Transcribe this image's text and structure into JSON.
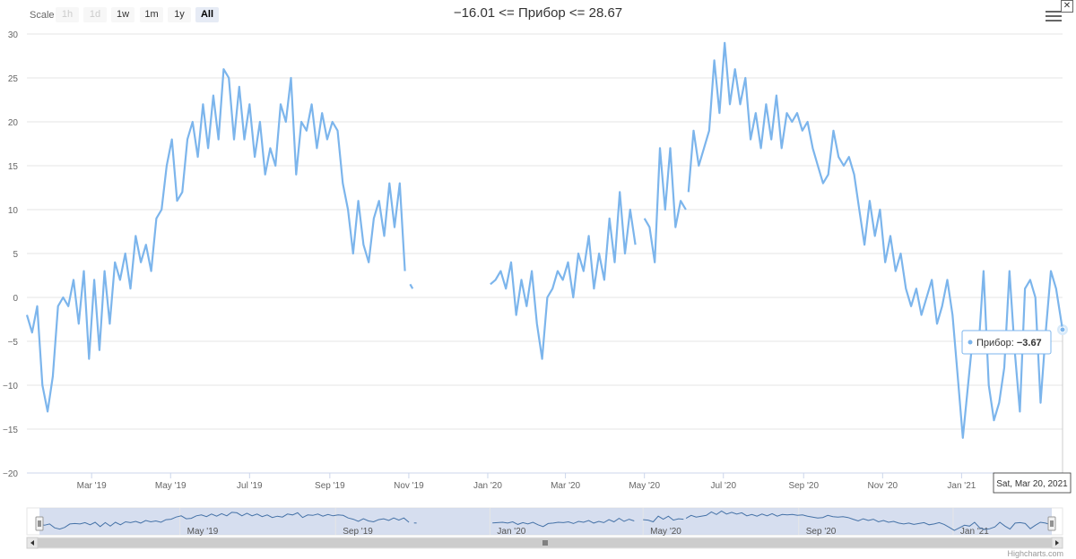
{
  "toolbar": {
    "scale_label": "Scale",
    "buttons": [
      {
        "label": "1h",
        "state": "disabled"
      },
      {
        "label": "1d",
        "state": "disabled"
      },
      {
        "label": "1w",
        "state": "normal"
      },
      {
        "label": "1m",
        "state": "normal"
      },
      {
        "label": "1y",
        "state": "normal"
      },
      {
        "label": "All",
        "state": "active"
      }
    ]
  },
  "title": "−16.01 <= Прибор <= 28.67",
  "tooltip": {
    "series": "Прибор",
    "value": "−3.67",
    "date": "Sat, Mar 20, 2021"
  },
  "credits": "Highcharts.com",
  "colors": {
    "series": "#7cb5ec",
    "grid": "#e6e6e6",
    "navigator_mask": "#ccd6eb"
  },
  "chart_data": {
    "type": "line",
    "series": [
      {
        "name": "Прибор"
      }
    ],
    "y_ticks": [
      "30",
      "25",
      "20",
      "15",
      "10",
      "5",
      "0",
      "−5",
      "−10",
      "−15",
      "−20"
    ],
    "ylim": [
      -20,
      30
    ],
    "x_ticks": [
      {
        "date": "2019-03-01",
        "label": "Mar '19"
      },
      {
        "date": "2019-05-01",
        "label": "May '19"
      },
      {
        "date": "2019-07-01",
        "label": "Jul '19"
      },
      {
        "date": "2019-09-01",
        "label": "Sep '19"
      },
      {
        "date": "2019-11-01",
        "label": "Nov '19"
      },
      {
        "date": "2020-01-01",
        "label": "Jan '20"
      },
      {
        "date": "2020-03-01",
        "label": "Mar '20"
      },
      {
        "date": "2020-05-01",
        "label": "May '20"
      },
      {
        "date": "2020-07-01",
        "label": "Jul '20"
      },
      {
        "date": "2020-09-01",
        "label": "Sep '20"
      },
      {
        "date": "2020-11-01",
        "label": "Nov '20"
      },
      {
        "date": "2021-01-01",
        "label": "Jan '21"
      }
    ],
    "navigator_ticks": [
      {
        "date": "2019-05-01",
        "label": "May '19"
      },
      {
        "date": "2019-09-01",
        "label": "Sep '19"
      },
      {
        "date": "2020-01-01",
        "label": "Jan '20"
      },
      {
        "date": "2020-05-01",
        "label": "May '20"
      },
      {
        "date": "2020-09-01",
        "label": "Sep '20"
      },
      {
        "date": "2021-01-01",
        "label": "Jan '21"
      }
    ],
    "xlim": [
      "2019-01-10",
      "2021-03-20"
    ],
    "segments": [
      [
        [
          "2019-01-10",
          -2
        ],
        [
          "2019-01-14",
          -4
        ],
        [
          "2019-01-18",
          -1
        ],
        [
          "2019-01-22",
          -10
        ],
        [
          "2019-01-26",
          -13
        ],
        [
          "2019-01-30",
          -9
        ],
        [
          "2019-02-03",
          -1
        ],
        [
          "2019-02-07",
          0
        ],
        [
          "2019-02-11",
          -1
        ],
        [
          "2019-02-15",
          2
        ],
        [
          "2019-02-19",
          -3
        ],
        [
          "2019-02-23",
          3
        ],
        [
          "2019-02-27",
          -7
        ],
        [
          "2019-03-03",
          2
        ],
        [
          "2019-03-07",
          -6
        ],
        [
          "2019-03-11",
          3
        ],
        [
          "2019-03-15",
          -3
        ],
        [
          "2019-03-19",
          4
        ],
        [
          "2019-03-23",
          2
        ],
        [
          "2019-03-27",
          5
        ],
        [
          "2019-03-31",
          1
        ],
        [
          "2019-04-04",
          7
        ],
        [
          "2019-04-08",
          4
        ],
        [
          "2019-04-12",
          6
        ],
        [
          "2019-04-16",
          3
        ],
        [
          "2019-04-20",
          9
        ],
        [
          "2019-04-24",
          10
        ],
        [
          "2019-04-28",
          15
        ],
        [
          "2019-05-02",
          18
        ],
        [
          "2019-05-06",
          11
        ],
        [
          "2019-05-10",
          12
        ],
        [
          "2019-05-14",
          18
        ],
        [
          "2019-05-18",
          20
        ],
        [
          "2019-05-22",
          16
        ],
        [
          "2019-05-26",
          22
        ],
        [
          "2019-05-30",
          17
        ],
        [
          "2019-06-03",
          23
        ],
        [
          "2019-06-07",
          18
        ],
        [
          "2019-06-11",
          26
        ],
        [
          "2019-06-15",
          25
        ],
        [
          "2019-06-19",
          18
        ],
        [
          "2019-06-23",
          24
        ],
        [
          "2019-06-27",
          18
        ],
        [
          "2019-07-01",
          22
        ],
        [
          "2019-07-05",
          16
        ],
        [
          "2019-07-09",
          20
        ],
        [
          "2019-07-13",
          14
        ],
        [
          "2019-07-17",
          17
        ],
        [
          "2019-07-21",
          15
        ],
        [
          "2019-07-25",
          22
        ],
        [
          "2019-07-29",
          20
        ],
        [
          "2019-08-02",
          25
        ],
        [
          "2019-08-06",
          14
        ],
        [
          "2019-08-10",
          20
        ],
        [
          "2019-08-14",
          19
        ],
        [
          "2019-08-18",
          22
        ],
        [
          "2019-08-22",
          17
        ],
        [
          "2019-08-26",
          21
        ],
        [
          "2019-08-30",
          18
        ],
        [
          "2019-09-03",
          20
        ],
        [
          "2019-09-07",
          19
        ],
        [
          "2019-09-11",
          13
        ],
        [
          "2019-09-15",
          10
        ],
        [
          "2019-09-19",
          5
        ],
        [
          "2019-09-23",
          11
        ],
        [
          "2019-09-27",
          6
        ],
        [
          "2019-10-01",
          4
        ],
        [
          "2019-10-05",
          9
        ],
        [
          "2019-10-09",
          11
        ],
        [
          "2019-10-13",
          7
        ],
        [
          "2019-10-17",
          13
        ],
        [
          "2019-10-21",
          8
        ],
        [
          "2019-10-25",
          13
        ],
        [
          "2019-10-29",
          3
        ]
      ],
      [
        [
          "2019-11-02",
          1.5
        ],
        [
          "2019-11-04",
          1
        ]
      ],
      [
        [
          "2020-01-03",
          1.5
        ],
        [
          "2020-01-07",
          2
        ],
        [
          "2020-01-11",
          3
        ],
        [
          "2020-01-15",
          1
        ],
        [
          "2020-01-19",
          4
        ],
        [
          "2020-01-23",
          -2
        ],
        [
          "2020-01-27",
          2
        ],
        [
          "2020-01-31",
          -1
        ],
        [
          "2020-02-04",
          3
        ],
        [
          "2020-02-08",
          -3
        ],
        [
          "2020-02-12",
          -7
        ],
        [
          "2020-02-16",
          0
        ],
        [
          "2020-02-20",
          1
        ],
        [
          "2020-02-24",
          3
        ],
        [
          "2020-02-28",
          2
        ],
        [
          "2020-03-03",
          4
        ],
        [
          "2020-03-07",
          0
        ],
        [
          "2020-03-11",
          5
        ],
        [
          "2020-03-15",
          3
        ],
        [
          "2020-03-19",
          7
        ],
        [
          "2020-03-23",
          1
        ],
        [
          "2020-03-27",
          5
        ],
        [
          "2020-03-31",
          2
        ],
        [
          "2020-04-04",
          9
        ],
        [
          "2020-04-08",
          4
        ],
        [
          "2020-04-12",
          12
        ],
        [
          "2020-04-16",
          5
        ],
        [
          "2020-04-20",
          10
        ],
        [
          "2020-04-24",
          6
        ]
      ],
      [
        [
          "2020-05-01",
          9
        ],
        [
          "2020-05-05",
          8
        ],
        [
          "2020-05-09",
          4
        ],
        [
          "2020-05-13",
          17
        ],
        [
          "2020-05-17",
          10
        ],
        [
          "2020-05-21",
          17
        ],
        [
          "2020-05-25",
          8
        ],
        [
          "2020-05-29",
          11
        ],
        [
          "2020-06-02",
          10
        ]
      ],
      [
        [
          "2020-06-04",
          12
        ],
        [
          "2020-06-08",
          19
        ],
        [
          "2020-06-12",
          15
        ],
        [
          "2020-06-16",
          17
        ],
        [
          "2020-06-20",
          19
        ],
        [
          "2020-06-24",
          27
        ],
        [
          "2020-06-28",
          21
        ],
        [
          "2020-07-02",
          29
        ],
        [
          "2020-07-06",
          22
        ],
        [
          "2020-07-10",
          26
        ],
        [
          "2020-07-14",
          22
        ],
        [
          "2020-07-18",
          25
        ],
        [
          "2020-07-22",
          18
        ],
        [
          "2020-07-26",
          21
        ],
        [
          "2020-07-30",
          17
        ],
        [
          "2020-08-03",
          22
        ],
        [
          "2020-08-07",
          18
        ],
        [
          "2020-08-11",
          23
        ],
        [
          "2020-08-15",
          17
        ],
        [
          "2020-08-19",
          21
        ],
        [
          "2020-08-23",
          20
        ],
        [
          "2020-08-27",
          21
        ],
        [
          "2020-08-31",
          19
        ],
        [
          "2020-09-04",
          20
        ],
        [
          "2020-09-08",
          17
        ],
        [
          "2020-09-12",
          15
        ],
        [
          "2020-09-16",
          13
        ],
        [
          "2020-09-20",
          14
        ],
        [
          "2020-09-24",
          19
        ],
        [
          "2020-09-28",
          16
        ],
        [
          "2020-10-02",
          15
        ],
        [
          "2020-10-06",
          16
        ],
        [
          "2020-10-10",
          14
        ],
        [
          "2020-10-14",
          10
        ],
        [
          "2020-10-18",
          6
        ],
        [
          "2020-10-22",
          11
        ],
        [
          "2020-10-26",
          7
        ],
        [
          "2020-10-30",
          10
        ],
        [
          "2020-11-03",
          4
        ],
        [
          "2020-11-07",
          7
        ],
        [
          "2020-11-11",
          3
        ],
        [
          "2020-11-15",
          5
        ],
        [
          "2020-11-19",
          1
        ],
        [
          "2020-11-23",
          -1
        ],
        [
          "2020-11-27",
          1
        ],
        [
          "2020-12-01",
          -2
        ],
        [
          "2020-12-05",
          0
        ],
        [
          "2020-12-09",
          2
        ],
        [
          "2020-12-13",
          -3
        ],
        [
          "2020-12-17",
          -1
        ],
        [
          "2020-12-21",
          2
        ],
        [
          "2020-12-25",
          -2
        ],
        [
          "2020-12-29",
          -9
        ],
        [
          "2021-01-02",
          -16
        ],
        [
          "2021-01-06",
          -10
        ],
        [
          "2021-01-10",
          -4
        ],
        [
          "2021-01-14",
          -6
        ],
        [
          "2021-01-18",
          3
        ],
        [
          "2021-01-22",
          -10
        ],
        [
          "2021-01-26",
          -14
        ],
        [
          "2021-01-30",
          -12
        ],
        [
          "2021-02-03",
          -8
        ],
        [
          "2021-02-07",
          3
        ],
        [
          "2021-02-11",
          -6
        ],
        [
          "2021-02-15",
          -13
        ],
        [
          "2021-02-19",
          1
        ],
        [
          "2021-02-23",
          2
        ],
        [
          "2021-02-27",
          0
        ],
        [
          "2021-03-03",
          -12
        ],
        [
          "2021-03-07",
          -4
        ],
        [
          "2021-03-11",
          3
        ],
        [
          "2021-03-15",
          1
        ],
        [
          "2021-03-20",
          -3.67
        ]
      ]
    ]
  }
}
